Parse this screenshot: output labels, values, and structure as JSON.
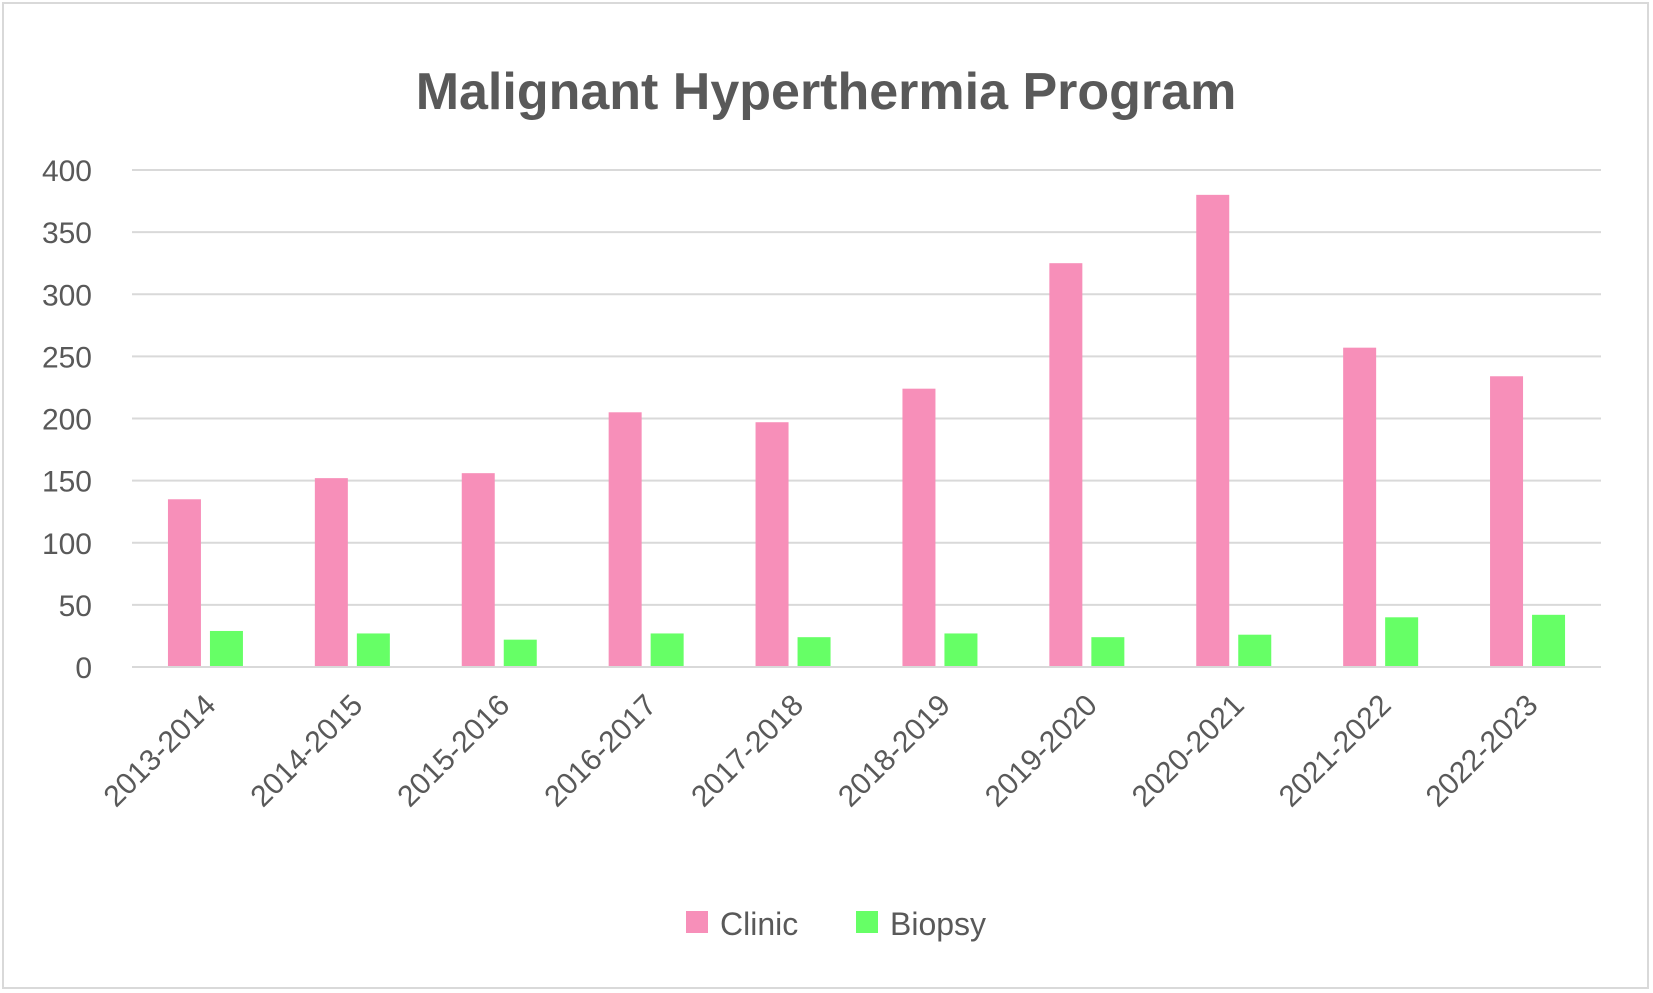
{
  "chart_data": {
    "type": "bar",
    "title": "Malignant Hyperthermia Program",
    "categories": [
      "2013-2014",
      "2014-2015",
      "2015-2016",
      "2016-2017",
      "2017-2018",
      "2018-2019",
      "2019-2020",
      "2020-2021",
      "2021-2022",
      "2022-2023"
    ],
    "series": [
      {
        "name": "Clinic",
        "color": "#f78fb9",
        "values": [
          135,
          152,
          156,
          205,
          197,
          224,
          325,
          380,
          257,
          234
        ]
      },
      {
        "name": "Biopsy",
        "color": "#66ff66",
        "values": [
          29,
          27,
          22,
          27,
          24,
          27,
          24,
          26,
          40,
          42
        ]
      }
    ],
    "ylim": [
      0,
      400
    ],
    "yticks": [
      0,
      50,
      100,
      150,
      200,
      250,
      300,
      350,
      400
    ],
    "grid": true,
    "legend_position": "bottom",
    "gridline_color": "#d9d9d9",
    "text_color": "#595959"
  }
}
